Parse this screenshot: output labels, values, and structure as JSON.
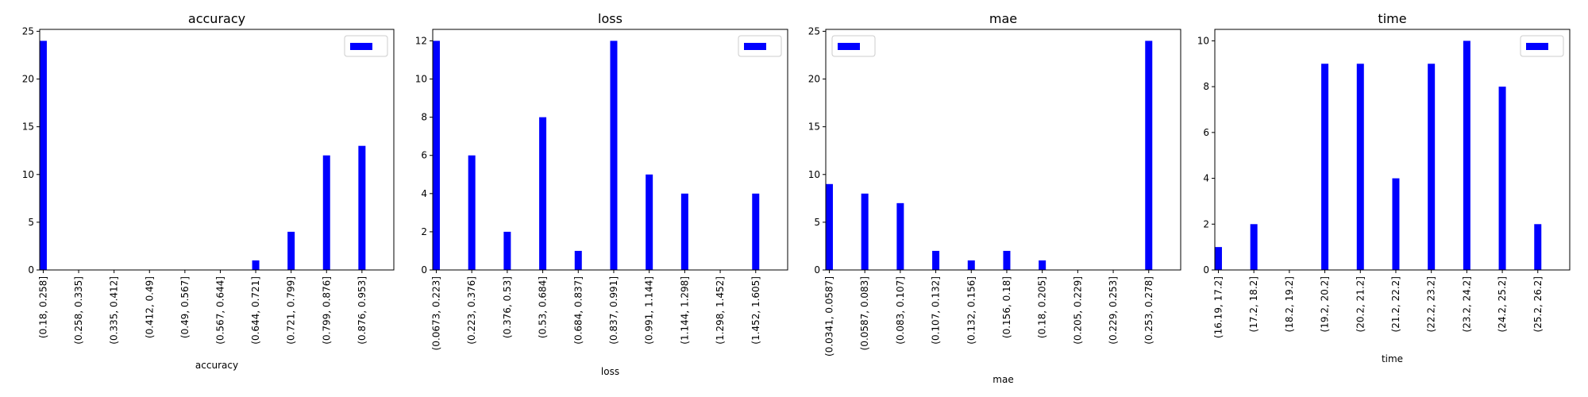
{
  "figure": {
    "background": "#ffffff",
    "bar_color": "#0000ff"
  },
  "chart_data": [
    {
      "type": "bar",
      "title": "accuracy",
      "xlabel": "accuracy",
      "ylabel": "",
      "categories": [
        "(0.18, 0.258]",
        "(0.258, 0.335]",
        "(0.335, 0.412]",
        "(0.412, 0.49]",
        "(0.49, 0.567]",
        "(0.567, 0.644]",
        "(0.644, 0.721]",
        "(0.721, 0.799]",
        "(0.799, 0.876]",
        "(0.876, 0.953]"
      ],
      "values": [
        24,
        0,
        0,
        0,
        0,
        0,
        1,
        4,
        12,
        13
      ],
      "ylim": [
        0,
        25.2
      ],
      "yticks": [
        0,
        5,
        10,
        15,
        20,
        25
      ],
      "legend": {
        "position": "top-right",
        "label": ""
      },
      "grid": false,
      "color": "#0000ff"
    },
    {
      "type": "bar",
      "title": "loss",
      "xlabel": "loss",
      "ylabel": "",
      "categories": [
        "(0.0673, 0.223]",
        "(0.223, 0.376]",
        "(0.376, 0.53]",
        "(0.53, 0.684]",
        "(0.684, 0.837]",
        "(0.837, 0.991]",
        "(0.991, 1.144]",
        "(1.144, 1.298]",
        "(1.298, 1.452]",
        "(1.452, 1.605]"
      ],
      "values": [
        12,
        6,
        2,
        8,
        1,
        12,
        5,
        4,
        0,
        4
      ],
      "ylim": [
        0,
        12.6
      ],
      "yticks": [
        0,
        2,
        4,
        6,
        8,
        10,
        12
      ],
      "legend": {
        "position": "top-right",
        "label": ""
      },
      "grid": false,
      "color": "#0000ff"
    },
    {
      "type": "bar",
      "title": "mae",
      "xlabel": "mae",
      "ylabel": "",
      "categories": [
        "(0.0341, 0.0587]",
        "(0.0587, 0.083]",
        "(0.083, 0.107]",
        "(0.107, 0.132]",
        "(0.132, 0.156]",
        "(0.156, 0.18]",
        "(0.18, 0.205]",
        "(0.205, 0.229]",
        "(0.229, 0.253]",
        "(0.253, 0.278]"
      ],
      "values": [
        9,
        8,
        7,
        2,
        1,
        2,
        1,
        0,
        0,
        24
      ],
      "ylim": [
        0,
        25.2
      ],
      "yticks": [
        0,
        5,
        10,
        15,
        20,
        25
      ],
      "legend": {
        "position": "top-left",
        "label": ""
      },
      "grid": false,
      "color": "#0000ff"
    },
    {
      "type": "bar",
      "title": "time",
      "xlabel": "time",
      "ylabel": "",
      "categories": [
        "(16.19, 17.2]",
        "(17.2, 18.2]",
        "(18.2, 19.2]",
        "(19.2, 20.2]",
        "(20.2, 21.2]",
        "(21.2, 22.2]",
        "(22.2, 23.2]",
        "(23.2, 24.2]",
        "(24.2, 25.2]",
        "(25.2, 26.2]"
      ],
      "values": [
        1,
        2,
        0,
        9,
        9,
        4,
        9,
        10,
        8,
        2
      ],
      "ylim": [
        0,
        10.5
      ],
      "yticks": [
        0,
        2,
        4,
        6,
        8,
        10
      ],
      "legend": {
        "position": "top-right",
        "label": ""
      },
      "grid": false,
      "color": "#0000ff"
    }
  ]
}
